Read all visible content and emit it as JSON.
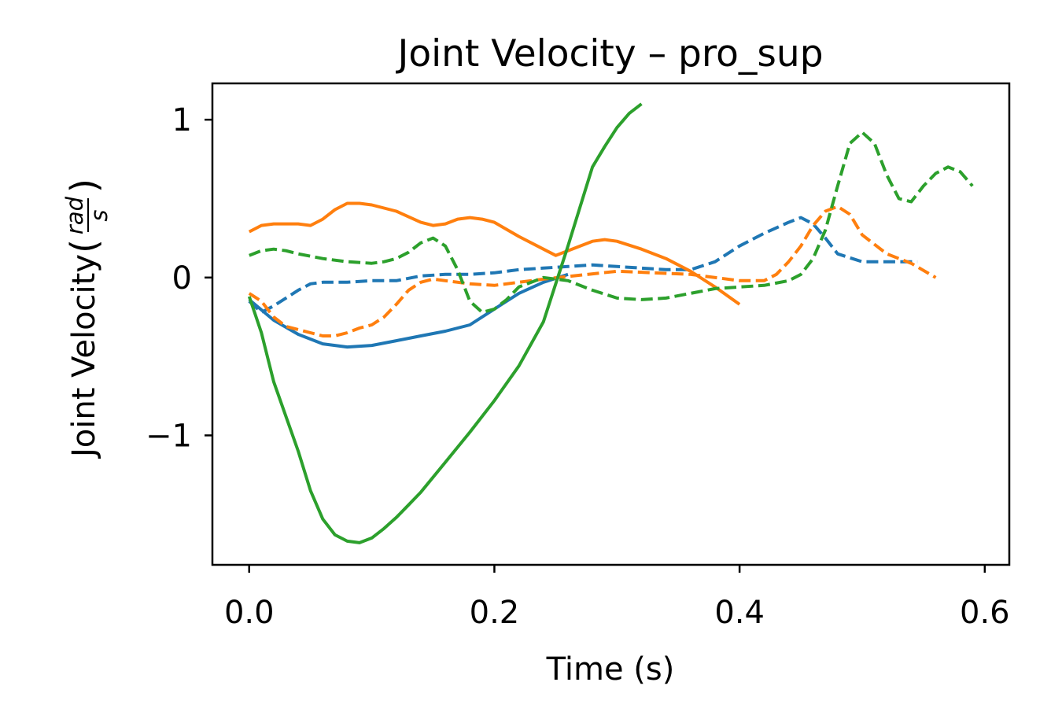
{
  "chart_data": {
    "type": "line",
    "title": "Joint Velocity – pro_sup",
    "xlabel": "Time (s)",
    "ylabel": {
      "text": "Joint Velocity",
      "fraction_numerator": "rad",
      "fraction_denominator": "s"
    },
    "xlim": [
      -0.03,
      0.62
    ],
    "ylim": [
      -1.82,
      1.23
    ],
    "xticks": [
      0.0,
      0.2,
      0.4,
      0.6
    ],
    "xtick_labels": [
      "0.0",
      "0.2",
      "0.4",
      "0.6"
    ],
    "yticks": [
      -1,
      0,
      1
    ],
    "ytick_labels": [
      "−1",
      "0",
      "1"
    ],
    "grid": false,
    "legend": "none",
    "series": [
      {
        "color": "#1f77b4",
        "dash": "solid",
        "x": [
          0.0,
          0.02,
          0.04,
          0.06,
          0.08,
          0.1,
          0.12,
          0.14,
          0.16,
          0.18,
          0.2,
          0.22,
          0.24,
          0.26
        ],
        "y": [
          -0.14,
          -0.27,
          -0.36,
          -0.42,
          -0.44,
          -0.43,
          -0.4,
          -0.37,
          -0.34,
          -0.3,
          -0.2,
          -0.1,
          -0.03,
          0.02
        ]
      },
      {
        "color": "#1f77b4",
        "dash": "dashed",
        "x": [
          0.0,
          0.01,
          0.02,
          0.03,
          0.04,
          0.05,
          0.06,
          0.08,
          0.1,
          0.12,
          0.14,
          0.16,
          0.18,
          0.2,
          0.22,
          0.24,
          0.26,
          0.28,
          0.3,
          0.32,
          0.34,
          0.36,
          0.38,
          0.4,
          0.42,
          0.44,
          0.45,
          0.46,
          0.47,
          0.48,
          0.5,
          0.52,
          0.545
        ],
        "y": [
          -0.15,
          -0.22,
          -0.18,
          -0.13,
          -0.08,
          -0.04,
          -0.03,
          -0.03,
          -0.02,
          -0.02,
          0.01,
          0.02,
          0.02,
          0.03,
          0.05,
          0.06,
          0.07,
          0.08,
          0.07,
          0.06,
          0.05,
          0.05,
          0.1,
          0.2,
          0.28,
          0.35,
          0.38,
          0.34,
          0.25,
          0.15,
          0.1,
          0.1,
          0.1
        ]
      },
      {
        "color": "#ff7f0e",
        "dash": "solid",
        "x": [
          0.0,
          0.01,
          0.02,
          0.03,
          0.04,
          0.05,
          0.06,
          0.07,
          0.08,
          0.09,
          0.1,
          0.12,
          0.14,
          0.15,
          0.16,
          0.17,
          0.18,
          0.19,
          0.2,
          0.22,
          0.24,
          0.25,
          0.26,
          0.27,
          0.28,
          0.29,
          0.3,
          0.32,
          0.34,
          0.36,
          0.38,
          0.4
        ],
        "y": [
          0.29,
          0.33,
          0.34,
          0.34,
          0.34,
          0.33,
          0.37,
          0.43,
          0.47,
          0.47,
          0.46,
          0.42,
          0.35,
          0.33,
          0.34,
          0.37,
          0.38,
          0.37,
          0.35,
          0.26,
          0.18,
          0.14,
          0.17,
          0.2,
          0.23,
          0.24,
          0.23,
          0.18,
          0.12,
          0.04,
          -0.06,
          -0.17
        ]
      },
      {
        "color": "#ff7f0e",
        "dash": "dashed",
        "x": [
          0.0,
          0.01,
          0.02,
          0.03,
          0.04,
          0.05,
          0.06,
          0.07,
          0.08,
          0.09,
          0.1,
          0.11,
          0.12,
          0.13,
          0.14,
          0.15,
          0.16,
          0.18,
          0.2,
          0.24,
          0.3,
          0.36,
          0.4,
          0.42,
          0.43,
          0.44,
          0.45,
          0.46,
          0.47,
          0.48,
          0.49,
          0.5,
          0.52,
          0.54,
          0.56
        ],
        "y": [
          -0.1,
          -0.15,
          -0.25,
          -0.31,
          -0.33,
          -0.35,
          -0.37,
          -0.37,
          -0.35,
          -0.32,
          -0.3,
          -0.25,
          -0.17,
          -0.08,
          -0.03,
          -0.01,
          -0.02,
          -0.04,
          -0.05,
          -0.01,
          0.04,
          0.02,
          -0.02,
          -0.02,
          0.02,
          0.1,
          0.2,
          0.33,
          0.42,
          0.45,
          0.4,
          0.27,
          0.15,
          0.09,
          0.0
        ]
      },
      {
        "color": "#2ca02c",
        "dash": "solid",
        "x": [
          0.0,
          0.01,
          0.02,
          0.03,
          0.04,
          0.05,
          0.06,
          0.07,
          0.08,
          0.09,
          0.1,
          0.11,
          0.12,
          0.13,
          0.14,
          0.16,
          0.18,
          0.2,
          0.22,
          0.24,
          0.26,
          0.28,
          0.29,
          0.3,
          0.31,
          0.32
        ],
        "y": [
          -0.12,
          -0.35,
          -0.66,
          -0.88,
          -1.1,
          -1.35,
          -1.53,
          -1.63,
          -1.67,
          -1.68,
          -1.65,
          -1.59,
          -1.52,
          -1.44,
          -1.36,
          -1.17,
          -0.98,
          -0.78,
          -0.56,
          -0.28,
          0.2,
          0.7,
          0.83,
          0.95,
          1.04,
          1.1
        ]
      },
      {
        "color": "#2ca02c",
        "dash": "dashed",
        "x": [
          0.0,
          0.01,
          0.02,
          0.03,
          0.04,
          0.06,
          0.08,
          0.1,
          0.11,
          0.12,
          0.13,
          0.14,
          0.15,
          0.16,
          0.17,
          0.18,
          0.19,
          0.2,
          0.21,
          0.22,
          0.24,
          0.26,
          0.28,
          0.3,
          0.32,
          0.34,
          0.36,
          0.38,
          0.4,
          0.42,
          0.44,
          0.45,
          0.46,
          0.47,
          0.48,
          0.49,
          0.5,
          0.51,
          0.52,
          0.53,
          0.54,
          0.55,
          0.56,
          0.57,
          0.58,
          0.59
        ],
        "y": [
          0.14,
          0.17,
          0.18,
          0.17,
          0.15,
          0.12,
          0.1,
          0.09,
          0.1,
          0.12,
          0.16,
          0.22,
          0.25,
          0.2,
          0.05,
          -0.15,
          -0.22,
          -0.2,
          -0.14,
          -0.06,
          0.0,
          -0.02,
          -0.08,
          -0.13,
          -0.14,
          -0.13,
          -0.1,
          -0.07,
          -0.06,
          -0.05,
          -0.02,
          0.02,
          0.12,
          0.3,
          0.58,
          0.85,
          0.92,
          0.85,
          0.65,
          0.5,
          0.48,
          0.58,
          0.66,
          0.7,
          0.67,
          0.58
        ]
      }
    ]
  }
}
